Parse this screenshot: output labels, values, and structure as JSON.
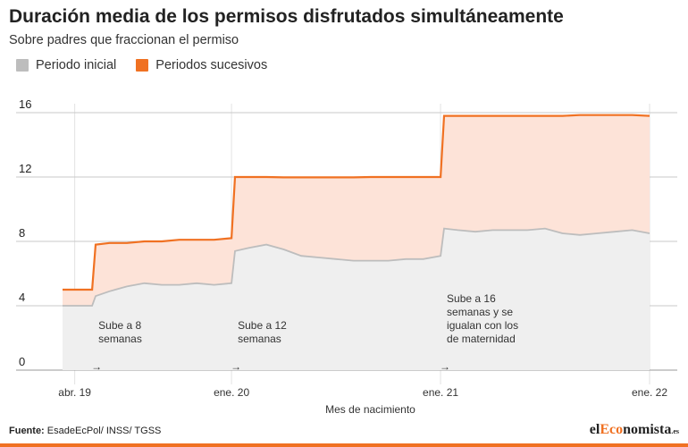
{
  "header": {
    "title": "Duración media de los permisos disfrutados simultáneamente",
    "subtitle": "Sobre padres que fraccionan el permiso"
  },
  "legend": [
    {
      "label": "Periodo inicial",
      "color": "#bdbdbd"
    },
    {
      "label": "Periodos sucesivos",
      "color": "#f07122"
    }
  ],
  "footer": {
    "source_label": "Fuente:",
    "source_text": "EsadeEcPol/ INSS/ TGSS",
    "logo_prefix": "el",
    "logo_accent": "Eco",
    "logo_suffix": "nomista",
    "logo_tld": ".es"
  },
  "chart_data": {
    "type": "area",
    "title": "Duración media de los permisos disfrutados simultáneamente",
    "subtitle": "Sobre padres que fraccionan el permiso",
    "xlabel": "Mes de nacimiento",
    "ylabel": "",
    "ylim": [
      0,
      16
    ],
    "yticks": [
      0,
      4,
      8,
      12,
      16
    ],
    "xticks": [
      {
        "label": "abr. 19",
        "x": 1
      },
      {
        "label": "ene. 20",
        "x": 10
      },
      {
        "label": "ene. 21",
        "x": 22
      },
      {
        "label": "ene. 22",
        "x": 34
      }
    ],
    "x_unit": "months since jan. 2019",
    "x": [
      0.3,
      2,
      2.2,
      3,
      4,
      5,
      6,
      7,
      8,
      9,
      10,
      10.2,
      11,
      12,
      13,
      14,
      15,
      16,
      17,
      18,
      19,
      20,
      21,
      22,
      22.2,
      23,
      24,
      25,
      26,
      27,
      28,
      29,
      30,
      31,
      32,
      33,
      34
    ],
    "series": [
      {
        "name": "Periodo inicial",
        "color": "#bdbdbd",
        "fill": "#efefef",
        "values": [
          4.0,
          4.0,
          4.6,
          4.9,
          5.2,
          5.4,
          5.3,
          5.3,
          5.4,
          5.3,
          5.4,
          7.4,
          7.6,
          7.8,
          7.5,
          7.1,
          7.0,
          6.9,
          6.8,
          6.8,
          6.8,
          6.9,
          6.9,
          7.1,
          8.8,
          8.7,
          8.6,
          8.7,
          8.7,
          8.7,
          8.8,
          8.5,
          8.4,
          8.5,
          8.6,
          8.7,
          8.5
        ]
      },
      {
        "name": "Periodos sucesivos",
        "color": "#f07122",
        "fill": "#fde3d8",
        "values": [
          5.0,
          5.0,
          7.8,
          7.9,
          7.9,
          8.0,
          8.0,
          8.1,
          8.1,
          8.1,
          8.2,
          12.0,
          12.0,
          12.0,
          11.98,
          11.98,
          11.98,
          11.98,
          11.98,
          12.0,
          12.0,
          12.0,
          12.0,
          12.0,
          15.8,
          15.8,
          15.8,
          15.8,
          15.8,
          15.8,
          15.8,
          15.8,
          15.85,
          15.85,
          15.85,
          15.85,
          15.8
        ]
      }
    ],
    "annotations": [
      {
        "lines": [
          "Sube a 8",
          "semanas"
        ],
        "x": 2
      },
      {
        "lines": [
          "Sube a 12",
          "semanas"
        ],
        "x": 10
      },
      {
        "lines": [
          "Sube a 16",
          "semanas y se",
          "igualan con los",
          "de maternidad"
        ],
        "x": 22
      }
    ],
    "arrow_glyph": "→",
    "grid": true,
    "legend_position": "top-left"
  }
}
